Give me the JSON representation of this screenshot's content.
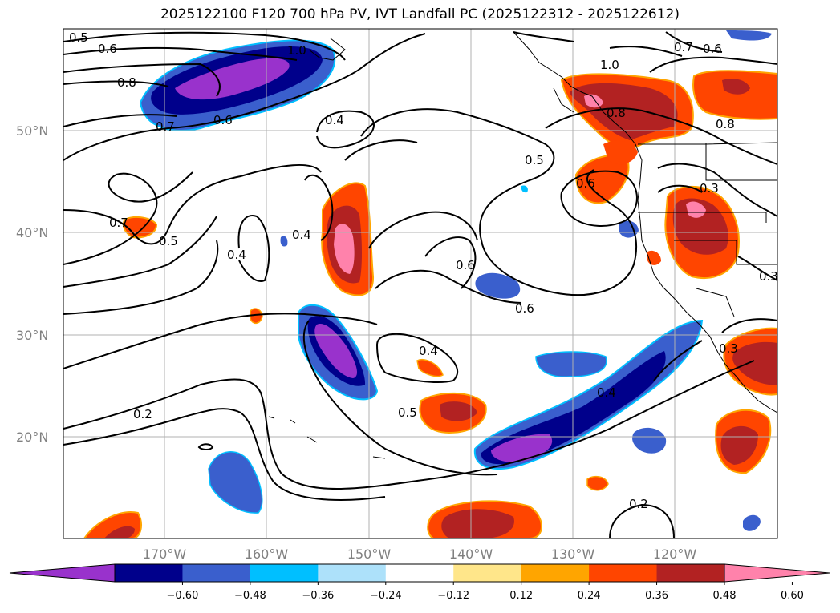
{
  "title": "2025122100 F120 700 hPa PV, IVT Landfall PC (2025122312 - 2025122612)",
  "lat_labels": [
    "50°N",
    "40°N",
    "30°N",
    "20°N"
  ],
  "lon_labels": [
    "170°W",
    "160°W",
    "150°W",
    "140°W",
    "130°W",
    "120°W"
  ],
  "contour_labels": [
    "0.5",
    "0.6",
    "0.8",
    "0.7",
    "0.6",
    "0.4",
    "1.0",
    "0.7",
    "0.6",
    "1.0",
    "0.8",
    "0.8",
    "0.5",
    "0.6",
    "0.3",
    "0.7",
    "0.5",
    "0.4",
    "0.4",
    "0.6",
    "0.6",
    "0.3",
    "0.4",
    "0.5",
    "0.2",
    "0.4",
    "0.2",
    "0.3"
  ],
  "colorbar": {
    "ticks": [
      "−0.60",
      "−0.48",
      "−0.36",
      "−0.24",
      "−0.12",
      "0.12",
      "0.24",
      "0.36",
      "0.48",
      "0.60"
    ],
    "colors": [
      "#9932CC",
      "#00008B",
      "#3A5FCD",
      "#00BFFF",
      "#ADE1FA",
      "#FFFFFF",
      "#FFE68A",
      "#FFA500",
      "#FF4500",
      "#B22222",
      "#FF82AB"
    ]
  }
}
